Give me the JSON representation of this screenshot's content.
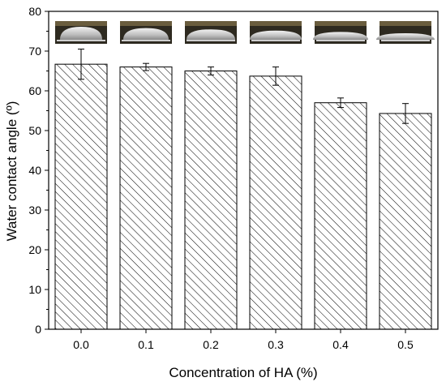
{
  "chart_data": {
    "type": "bar",
    "xlabel": "Concentration of HA (%)",
    "ylabel": "Water contact angle (º)",
    "categories": [
      "0.0",
      "0.1",
      "0.2",
      "0.3",
      "0.4",
      "0.5"
    ],
    "values": [
      66.7,
      66.0,
      65.0,
      63.7,
      57.0,
      54.3
    ],
    "errors": [
      3.8,
      0.9,
      1.0,
      2.3,
      1.2,
      2.5
    ],
    "ylim": [
      0,
      80
    ],
    "yticks": [
      0,
      10,
      20,
      30,
      40,
      50,
      60,
      70,
      80
    ],
    "grid": false,
    "bar_pattern": "diagonal-hatch",
    "bar_fill": "#ffffff",
    "bar_stroke": "#000000",
    "droplet_images": [
      "droplet-photo",
      "droplet-photo",
      "droplet-photo",
      "droplet-photo",
      "droplet-photo",
      "droplet-photo"
    ]
  }
}
